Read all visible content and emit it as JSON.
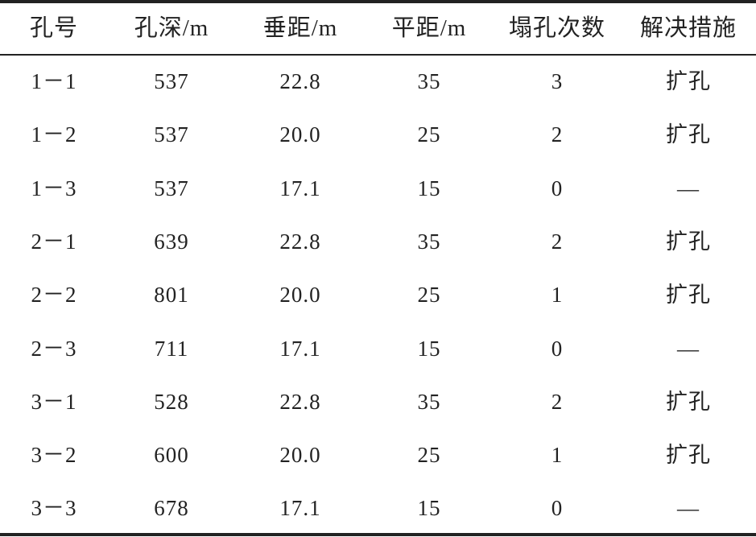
{
  "table": {
    "headers": [
      "孔号",
      "孔深/m",
      "垂距/m",
      "平距/m",
      "塌孔次数",
      "解决措施"
    ],
    "rows": [
      [
        "1－1",
        "537",
        "22.8",
        "35",
        "3",
        "扩孔"
      ],
      [
        "1－2",
        "537",
        "20.0",
        "25",
        "2",
        "扩孔"
      ],
      [
        "1－3",
        "537",
        "17.1",
        "15",
        "0",
        "—"
      ],
      [
        "2－1",
        "639",
        "22.8",
        "35",
        "2",
        "扩孔"
      ],
      [
        "2－2",
        "801",
        "20.0",
        "25",
        "1",
        "扩孔"
      ],
      [
        "2－3",
        "711",
        "17.1",
        "15",
        "0",
        "—"
      ],
      [
        "3－1",
        "528",
        "22.8",
        "35",
        "2",
        "扩孔"
      ],
      [
        "3－2",
        "600",
        "20.0",
        "25",
        "1",
        "扩孔"
      ],
      [
        "3－3",
        "678",
        "17.1",
        "15",
        "0",
        "—"
      ]
    ]
  }
}
